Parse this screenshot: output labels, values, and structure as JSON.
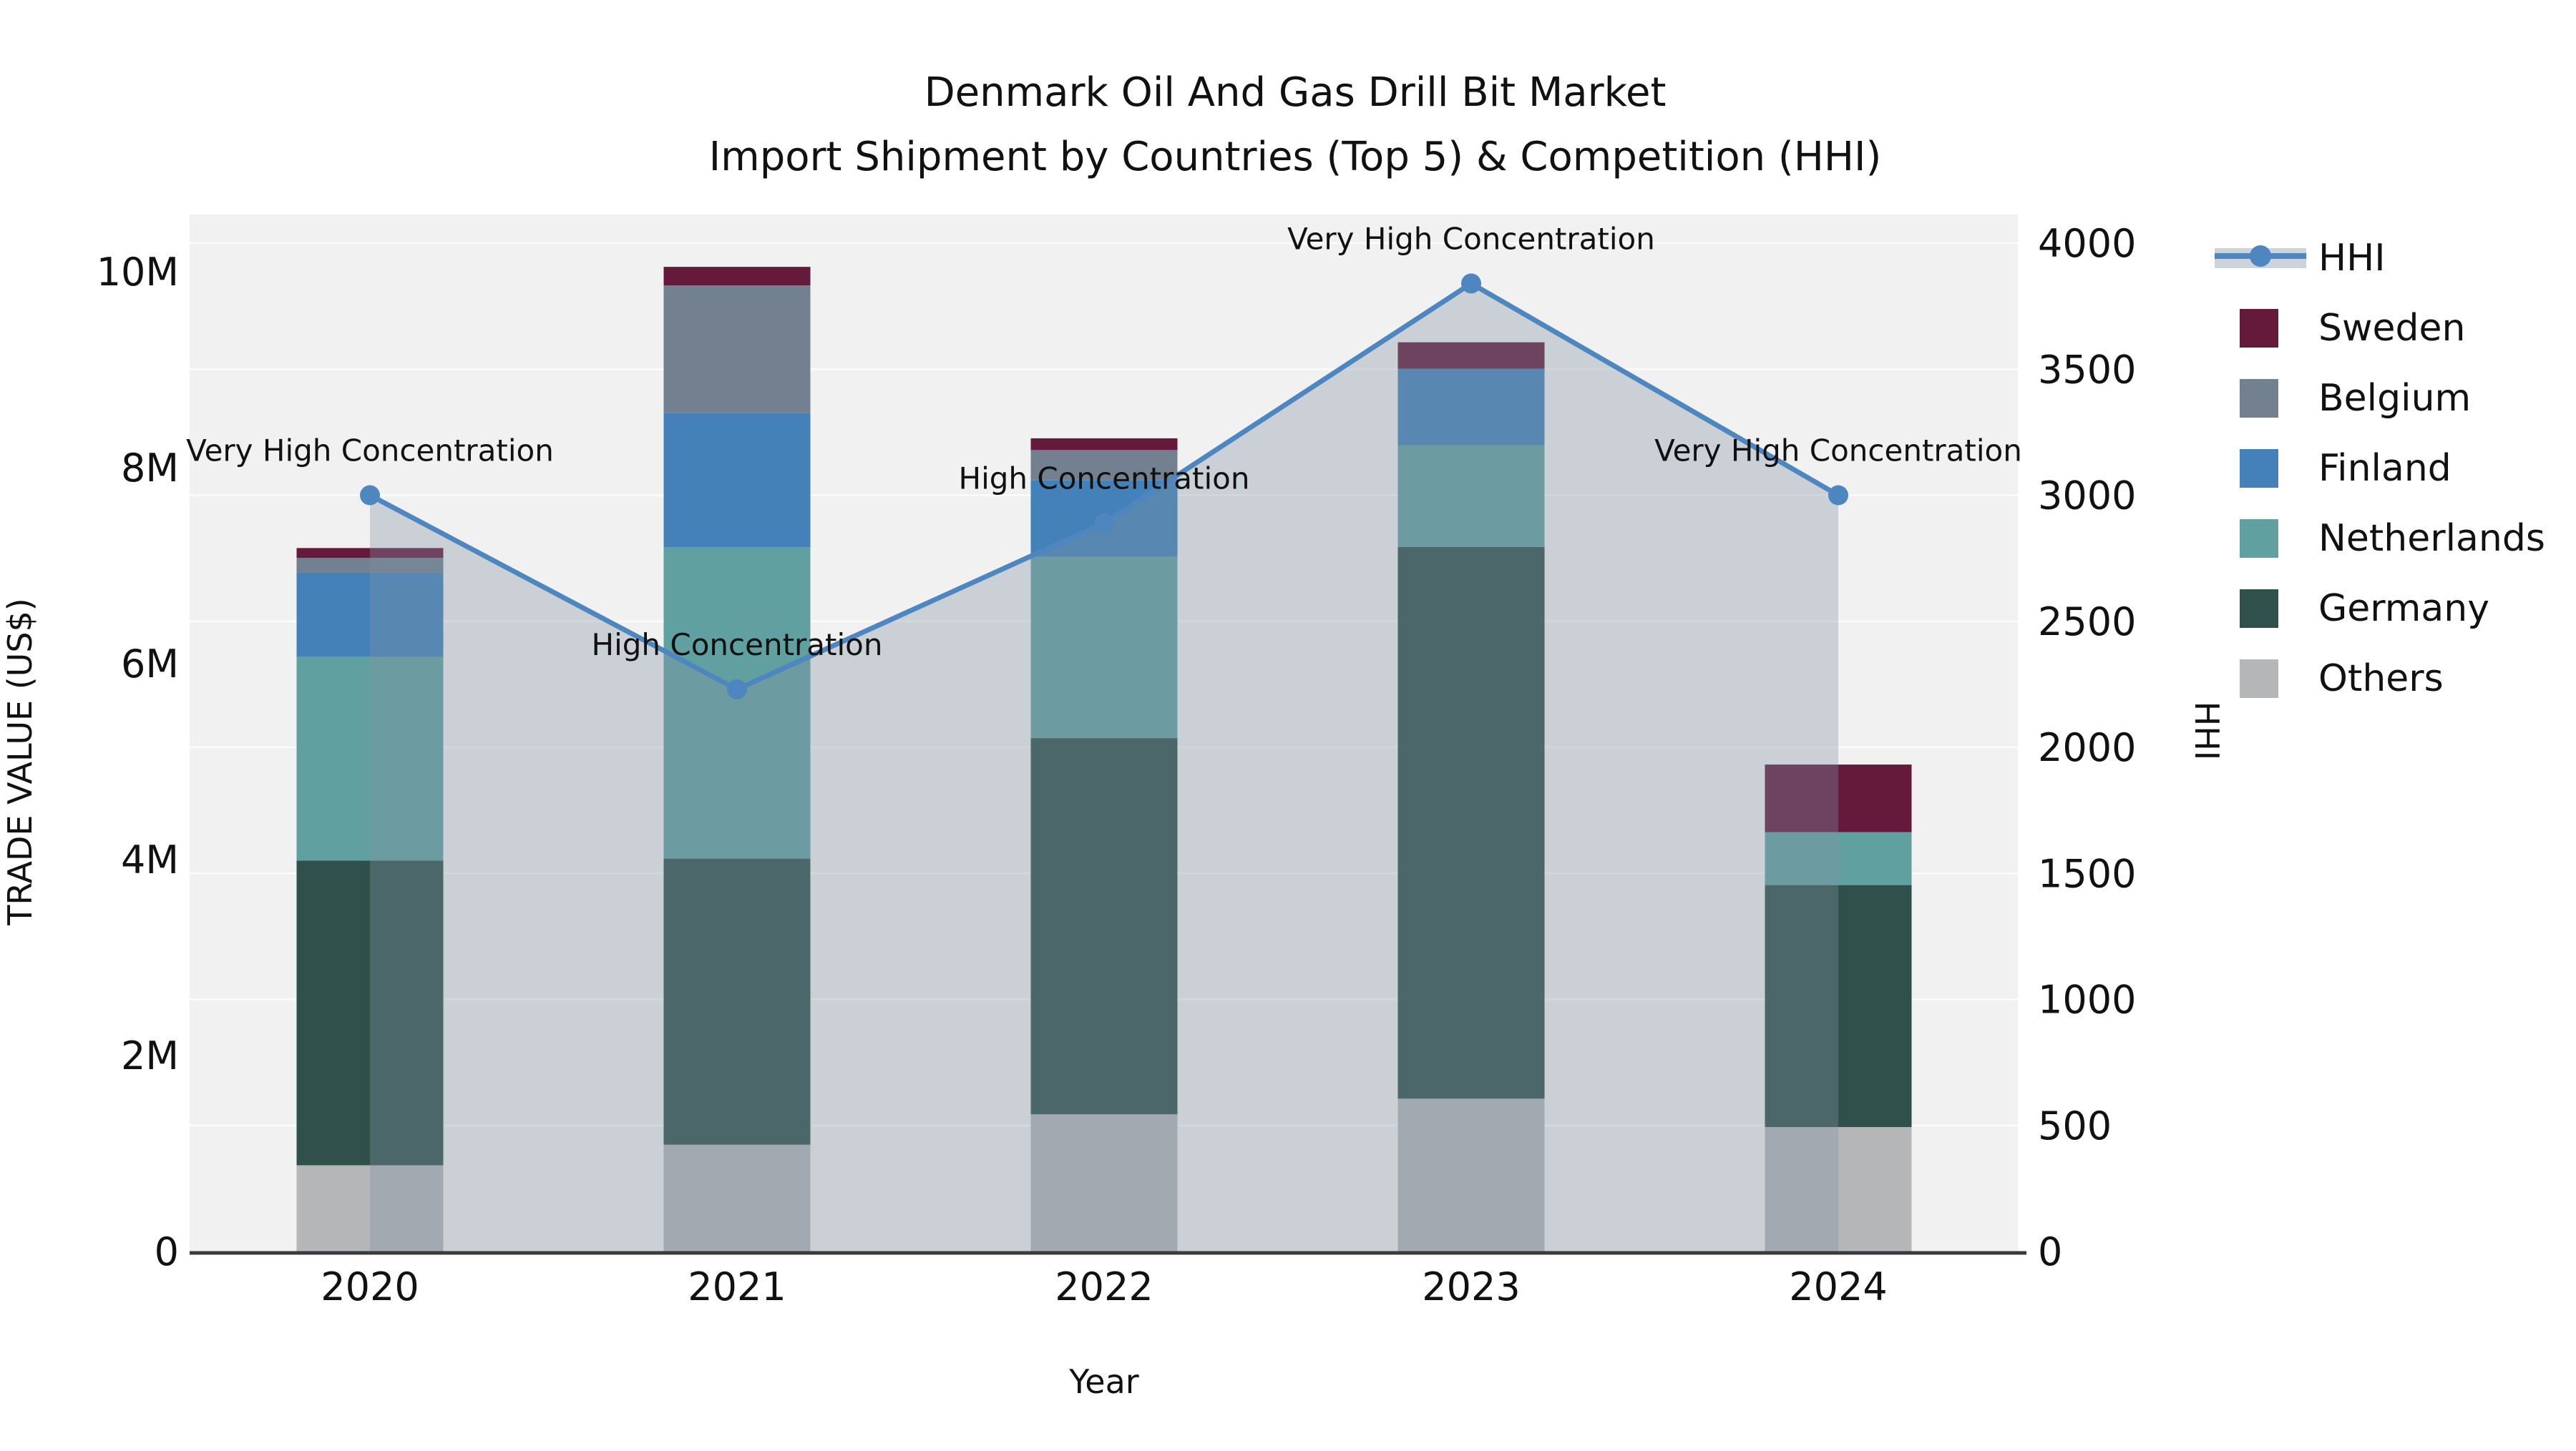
{
  "title": {
    "line1": "Denmark Oil And Gas Drill Bit Market",
    "line2": "Import Shipment by Countries (Top 5) & Competition (HHI)"
  },
  "axes": {
    "x": {
      "label": "Year",
      "ticks": [
        "2020",
        "2021",
        "2022",
        "2023",
        "2024"
      ]
    },
    "y_left": {
      "label": "TRADE VALUE (US$)",
      "ticks": [
        "0",
        "2M",
        "4M",
        "6M",
        "8M",
        "10M"
      ],
      "range_millions": [
        0,
        10
      ]
    },
    "y_right": {
      "label": "HHI",
      "ticks": [
        "0",
        "500",
        "1000",
        "1500",
        "2000",
        "2500",
        "3000",
        "3500",
        "4000"
      ],
      "range": [
        0,
        4000
      ]
    }
  },
  "legend": {
    "items": [
      {
        "label": "HHI",
        "type": "line"
      },
      {
        "label": "Sweden",
        "type": "square"
      },
      {
        "label": "Belgium",
        "type": "square"
      },
      {
        "label": "Finland",
        "type": "square"
      },
      {
        "label": "Netherlands",
        "type": "square"
      },
      {
        "label": "Germany",
        "type": "square"
      },
      {
        "label": "Others",
        "type": "square"
      }
    ]
  },
  "colors": {
    "hhi_line": "#4e86bf",
    "hhi_area": "rgba(130,145,162,0.35)",
    "hhi_area_legend": "#cdd3da",
    "sweden": "#651a3c",
    "belgium": "#72808f",
    "finland": "#4381b8",
    "netherlands": "#61a0a0",
    "germany": "#30504b",
    "others": "#b4b6b7",
    "plot_bg": "#f1f1f2",
    "gridline": "#fbfbfc",
    "axis_line": "#3a3a3a"
  },
  "chart_data": {
    "type": "combo: stacked bar (trade value, left axis) + line (HHI, right axis)",
    "categories": [
      "2020",
      "2021",
      "2022",
      "2023",
      "2024"
    ],
    "bar_value_unit": "million US$",
    "stack_order_bottom_to_top": [
      "Others",
      "Germany",
      "Netherlands",
      "Finland",
      "Belgium",
      "Sweden"
    ],
    "series": [
      {
        "name": "Sweden",
        "color_key": "sweden",
        "values": [
          0.1,
          0.19,
          0.12,
          0.27,
          0.69
        ]
      },
      {
        "name": "Belgium",
        "color_key": "belgium",
        "values": [
          0.15,
          1.3,
          0.31,
          0.0,
          0.0
        ]
      },
      {
        "name": "Finland",
        "color_key": "finland",
        "values": [
          0.86,
          1.37,
          0.78,
          0.78,
          0.0
        ]
      },
      {
        "name": "Netherlands",
        "color_key": "netherlands",
        "values": [
          2.08,
          3.18,
          1.85,
          1.04,
          0.54
        ]
      },
      {
        "name": "Germany",
        "color_key": "germany",
        "values": [
          3.11,
          2.92,
          3.84,
          5.63,
          2.47
        ]
      },
      {
        "name": "Others",
        "color_key": "others",
        "values": [
          0.88,
          1.09,
          1.4,
          1.56,
          1.27
        ]
      }
    ],
    "bar_totals_millions": [
      7.18,
      10.05,
      8.3,
      9.28,
      4.97
    ],
    "hhi_line": {
      "name": "HHI",
      "values": [
        3000,
        2230,
        2890,
        3840,
        3000
      ]
    },
    "annotations": [
      {
        "year": "2020",
        "text": "Very High Concentration"
      },
      {
        "year": "2021",
        "text": "High Concentration"
      },
      {
        "year": "2022",
        "text": "High Concentration"
      },
      {
        "year": "2023",
        "text": "Very High Concentration"
      },
      {
        "year": "2024",
        "text": "Very High Concentration"
      }
    ],
    "layout_hints": {
      "legend_position": "right",
      "grid": "horizontal, every 500 HHI",
      "hhi_area_fill": "translucent fill under HHI line from 2020 to 2024 bar centers"
    }
  }
}
